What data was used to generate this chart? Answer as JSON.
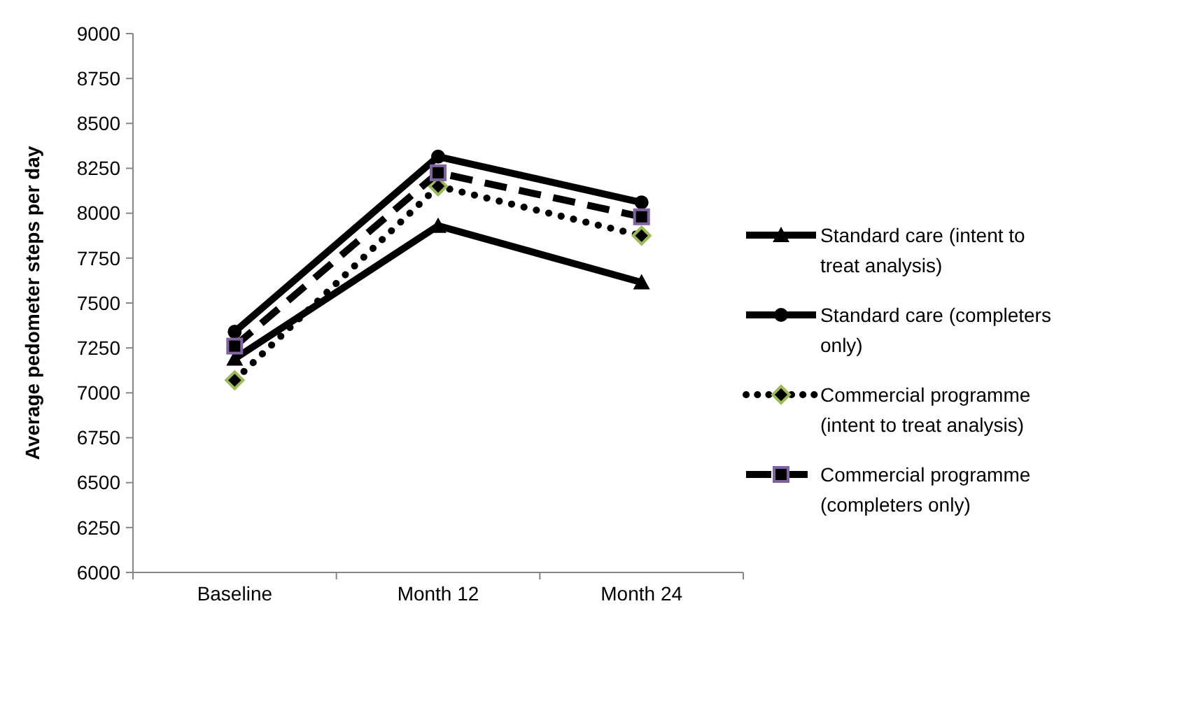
{
  "chart_data": {
    "type": "line",
    "ylabel": "Average pedometer steps per day",
    "categories": [
      "Baseline",
      "Month 12",
      "Month 24"
    ],
    "ylim": [
      6000,
      9000
    ],
    "yticks": [
      6000,
      6250,
      6500,
      6750,
      7000,
      7250,
      7500,
      7750,
      8000,
      8250,
      8500,
      8750,
      9000
    ],
    "grid": false,
    "legend": "right",
    "series": [
      {
        "name": "Standard care (intent to treat analysis)",
        "color": "#000000",
        "marker": "triangle",
        "line_style": "solid",
        "values": [
          7190,
          7930,
          7615
        ]
      },
      {
        "name": "Standard care (completers only)",
        "color": "#000000",
        "marker": "circle",
        "line_style": "solid",
        "values": [
          7340,
          8315,
          8060
        ]
      },
      {
        "name": "Commercial programme (intent to treat analysis)",
        "color": "#000000",
        "marker": "diamond",
        "line_style": "dotted",
        "values": [
          7070,
          8150,
          7875
        ]
      },
      {
        "name": "Commercial programme (completers only)",
        "color": "#000000",
        "marker": "square",
        "line_style": "dashed",
        "values": [
          7260,
          8225,
          7980
        ]
      }
    ]
  }
}
